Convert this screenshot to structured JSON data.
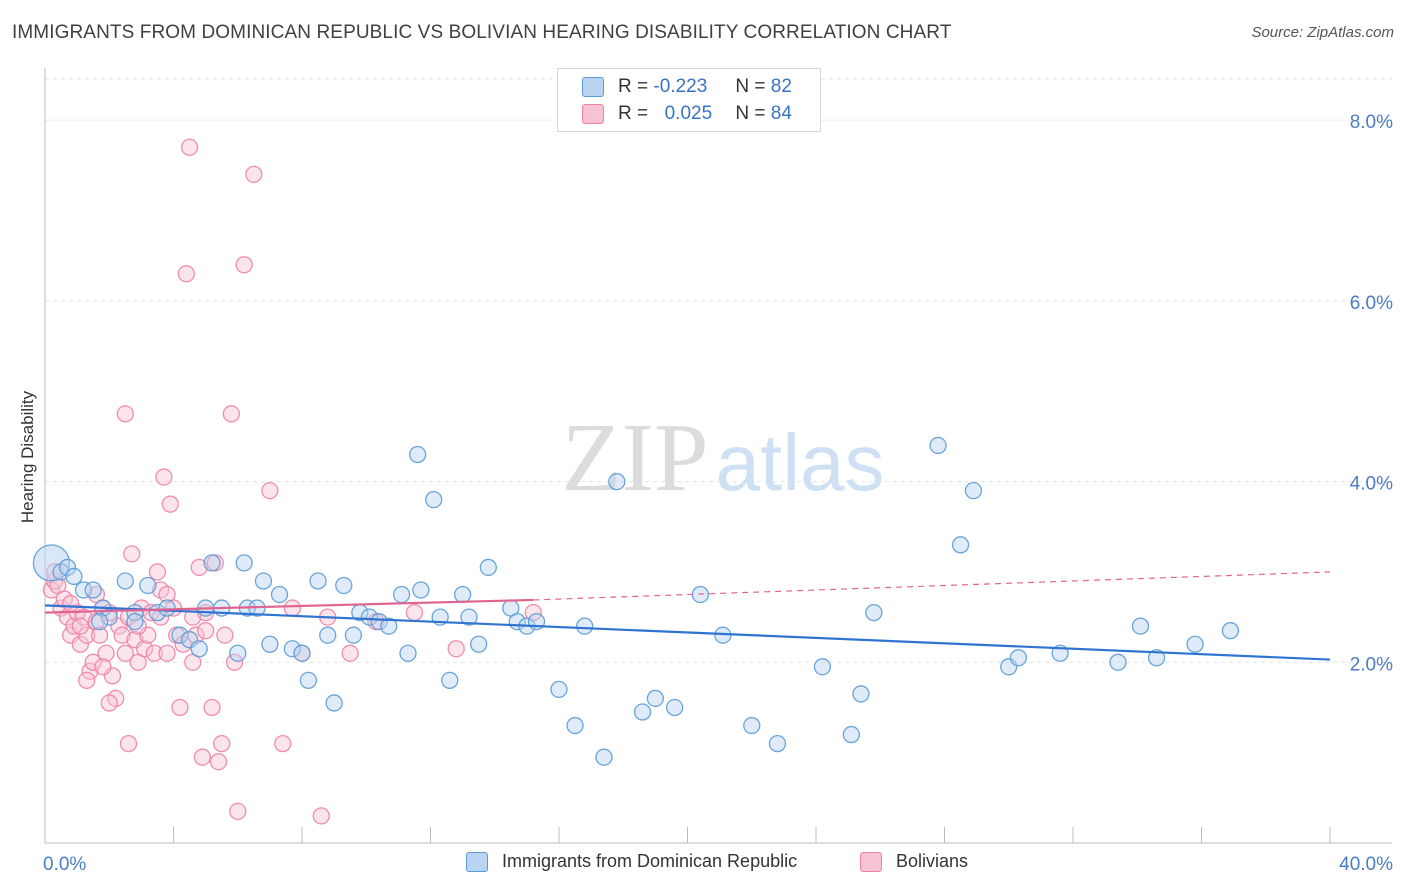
{
  "title": "IMMIGRANTS FROM DOMINICAN REPUBLIC VS BOLIVIAN HEARING DISABILITY CORRELATION CHART",
  "source": "Source: ZipAtlas.com",
  "watermark": {
    "zip": "ZIP",
    "atlas": "atlas"
  },
  "legend": {
    "rows": [
      {
        "r_label": "R =",
        "r_value": "-0.223",
        "n_label": "N =",
        "n_value": "82"
      },
      {
        "r_label": "R =",
        "r_value": "0.025",
        "n_label": "N =",
        "n_value": "84"
      }
    ]
  },
  "colors": {
    "blue": "#5b9bd5",
    "blue_fill": "#b9d3f2",
    "blue_line": "#2f74d0",
    "pink": "#ee82a6",
    "pink_fill": "#f7c3d4",
    "pink_line": "#e06490",
    "tick_text": "#4a7cc7",
    "grid": "#e3e3e3"
  },
  "chart_data": {
    "type": "scatter",
    "title": "IMMIGRANTS FROM DOMINICAN REPUBLIC VS BOLIVIAN HEARING DISABILITY CORRELATION CHART",
    "xlabel": "",
    "ylabel": "Hearing Disability",
    "xlim": [
      0,
      40
    ],
    "ylim": [
      0,
      8.5
    ],
    "x_tick_labels": [
      "0.0%",
      "40.0%"
    ],
    "y_ticks": [
      2,
      4,
      6,
      8
    ],
    "y_tick_labels": [
      "2.0%",
      "4.0%",
      "6.0%",
      "8.0%"
    ],
    "grid": true,
    "legend_position": "top-center",
    "series": [
      {
        "name": "Immigrants from Dominican Republic",
        "color": "#5b9bd5",
        "trend": {
          "x": [
            0,
            40
          ],
          "y": [
            2.63,
            2.03
          ],
          "style": "solid"
        },
        "points": [
          [
            0.2,
            3.1
          ],
          [
            0.5,
            3.0
          ],
          [
            0.7,
            3.05
          ],
          [
            0.9,
            2.95
          ],
          [
            1.2,
            2.8
          ],
          [
            1.5,
            2.8
          ],
          [
            1.8,
            2.6
          ],
          [
            2.0,
            2.5
          ],
          [
            2.5,
            2.9
          ],
          [
            2.8,
            2.55
          ],
          [
            3.2,
            2.85
          ],
          [
            3.5,
            2.55
          ],
          [
            3.8,
            2.6
          ],
          [
            4.2,
            2.3
          ],
          [
            4.5,
            2.25
          ],
          [
            4.8,
            2.15
          ],
          [
            5.2,
            3.1
          ],
          [
            5.5,
            2.6
          ],
          [
            6.0,
            2.1
          ],
          [
            6.2,
            3.1
          ],
          [
            6.3,
            2.6
          ],
          [
            6.6,
            2.6
          ],
          [
            6.8,
            2.9
          ],
          [
            7.0,
            2.2
          ],
          [
            7.3,
            2.75
          ],
          [
            7.7,
            2.15
          ],
          [
            8.0,
            2.1
          ],
          [
            8.2,
            1.8
          ],
          [
            8.5,
            2.9
          ],
          [
            8.8,
            2.3
          ],
          [
            9.0,
            1.55
          ],
          [
            9.3,
            2.85
          ],
          [
            9.6,
            2.3
          ],
          [
            9.8,
            2.55
          ],
          [
            10.1,
            2.5
          ],
          [
            10.4,
            2.45
          ],
          [
            10.7,
            2.4
          ],
          [
            11.1,
            2.75
          ],
          [
            11.3,
            2.1
          ],
          [
            11.6,
            4.3
          ],
          [
            11.7,
            2.8
          ],
          [
            12.1,
            3.8
          ],
          [
            12.3,
            2.5
          ],
          [
            12.6,
            1.8
          ],
          [
            13.0,
            2.75
          ],
          [
            13.2,
            2.5
          ],
          [
            13.5,
            2.2
          ],
          [
            13.8,
            3.05
          ],
          [
            14.5,
            2.6
          ],
          [
            14.7,
            2.45
          ],
          [
            15.0,
            2.4
          ],
          [
            15.3,
            2.45
          ],
          [
            16.0,
            1.7
          ],
          [
            16.5,
            1.3
          ],
          [
            16.8,
            2.4
          ],
          [
            17.4,
            0.95
          ],
          [
            17.8,
            4.0
          ],
          [
            18.6,
            1.45
          ],
          [
            19.0,
            1.6
          ],
          [
            19.6,
            1.5
          ],
          [
            20.4,
            2.75
          ],
          [
            21.1,
            2.3
          ],
          [
            22.0,
            1.3
          ],
          [
            22.8,
            1.1
          ],
          [
            24.2,
            1.95
          ],
          [
            25.1,
            1.2
          ],
          [
            25.4,
            1.65
          ],
          [
            25.8,
            2.55
          ],
          [
            27.8,
            4.4
          ],
          [
            28.5,
            3.3
          ],
          [
            28.9,
            3.9
          ],
          [
            30.0,
            1.95
          ],
          [
            30.3,
            2.05
          ],
          [
            31.6,
            2.1
          ],
          [
            33.4,
            2.0
          ],
          [
            34.1,
            2.4
          ],
          [
            34.6,
            2.05
          ],
          [
            35.8,
            2.2
          ],
          [
            36.9,
            2.35
          ],
          [
            1.7,
            2.45
          ],
          [
            2.8,
            2.45
          ],
          [
            5.0,
            2.6
          ]
        ]
      },
      {
        "name": "Bolivians",
        "color": "#ee82a6",
        "trend": {
          "x": [
            0,
            15.2
          ],
          "y": [
            2.55,
            2.69
          ],
          "style": "solid",
          "extended_x": [
            15.2,
            40
          ],
          "extended_y": [
            2.69,
            3.0
          ],
          "extended_style": "dashed"
        },
        "points": [
          [
            0.2,
            2.8
          ],
          [
            0.3,
            2.9
          ],
          [
            0.4,
            2.85
          ],
          [
            0.5,
            2.6
          ],
          [
            0.6,
            2.7
          ],
          [
            0.7,
            2.5
          ],
          [
            0.8,
            2.3
          ],
          [
            0.9,
            2.4
          ],
          [
            1.0,
            2.55
          ],
          [
            1.1,
            2.2
          ],
          [
            1.2,
            2.5
          ],
          [
            1.3,
            2.3
          ],
          [
            1.4,
            1.9
          ],
          [
            1.5,
            2.0
          ],
          [
            1.6,
            2.45
          ],
          [
            1.7,
            2.3
          ],
          [
            1.8,
            2.6
          ],
          [
            1.9,
            2.1
          ],
          [
            2.0,
            2.55
          ],
          [
            2.1,
            1.85
          ],
          [
            2.2,
            1.6
          ],
          [
            2.3,
            2.4
          ],
          [
            2.4,
            2.3
          ],
          [
            2.5,
            2.1
          ],
          [
            2.6,
            2.5
          ],
          [
            2.7,
            3.2
          ],
          [
            2.8,
            2.25
          ],
          [
            2.9,
            2.0
          ],
          [
            3.0,
            2.6
          ],
          [
            3.1,
            2.15
          ],
          [
            3.2,
            2.3
          ],
          [
            3.3,
            2.55
          ],
          [
            3.4,
            2.1
          ],
          [
            3.5,
            3.0
          ],
          [
            3.6,
            2.8
          ],
          [
            3.7,
            4.05
          ],
          [
            3.8,
            2.75
          ],
          [
            3.9,
            3.75
          ],
          [
            4.0,
            2.6
          ],
          [
            4.1,
            2.3
          ],
          [
            4.2,
            1.5
          ],
          [
            4.3,
            2.2
          ],
          [
            4.4,
            6.3
          ],
          [
            4.5,
            7.7
          ],
          [
            4.6,
            2.5
          ],
          [
            4.7,
            2.3
          ],
          [
            4.8,
            3.05
          ],
          [
            4.9,
            0.95
          ],
          [
            5.0,
            2.55
          ],
          [
            5.2,
            1.5
          ],
          [
            5.3,
            3.1
          ],
          [
            5.4,
            0.9
          ],
          [
            5.5,
            1.1
          ],
          [
            5.6,
            2.3
          ],
          [
            5.8,
            4.75
          ],
          [
            5.9,
            2.0
          ],
          [
            6.0,
            0.35
          ],
          [
            6.2,
            6.4
          ],
          [
            6.5,
            7.4
          ],
          [
            7.0,
            3.9
          ],
          [
            7.4,
            1.1
          ],
          [
            7.7,
            2.6
          ],
          [
            8.0,
            2.1
          ],
          [
            8.6,
            0.3
          ],
          [
            8.8,
            2.5
          ],
          [
            9.5,
            2.1
          ],
          [
            2.5,
            4.75
          ],
          [
            2.6,
            1.1
          ],
          [
            1.3,
            1.8
          ],
          [
            1.8,
            1.95
          ],
          [
            2.0,
            1.55
          ],
          [
            3.6,
            2.5
          ],
          [
            0.8,
            2.65
          ],
          [
            1.1,
            2.4
          ],
          [
            15.2,
            2.55
          ],
          [
            12.8,
            2.15
          ],
          [
            10.3,
            2.45
          ],
          [
            11.5,
            2.55
          ],
          [
            4.6,
            2.0
          ],
          [
            3.8,
            2.1
          ],
          [
            0.3,
            3.0
          ],
          [
            1.6,
            2.75
          ],
          [
            2.9,
            2.4
          ],
          [
            5.0,
            2.35
          ]
        ]
      }
    ]
  },
  "bottom_legend": [
    {
      "label": "Immigrants from Dominican Republic"
    },
    {
      "label": "Bolivians"
    }
  ]
}
